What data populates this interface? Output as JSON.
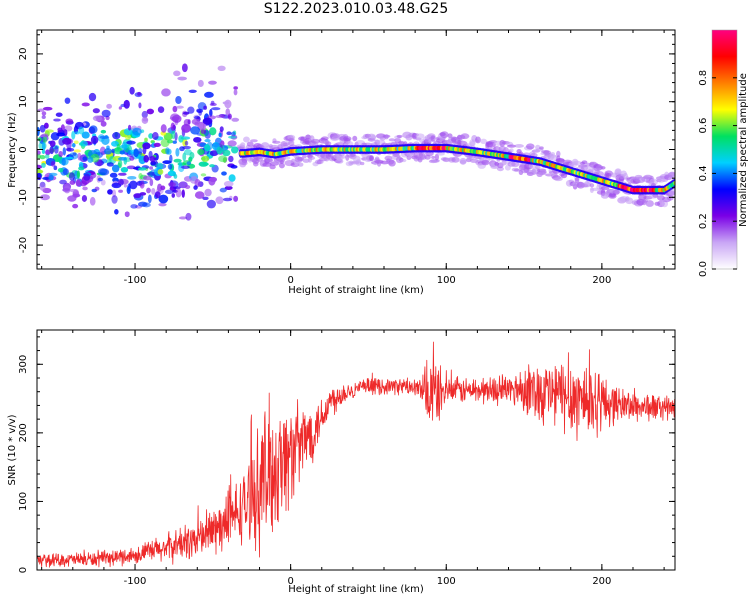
{
  "title": "S122.2023.010.03.48.G25",
  "chart_data": [
    {
      "type": "heatmap",
      "xlabel": "Height of straight line (km)",
      "ylabel": "Frequency (Hz)",
      "xlim": [
        -163,
        247
      ],
      "ylim": [
        -25,
        25
      ],
      "xticks": [
        -100,
        0,
        100,
        200
      ],
      "yticks": [
        -20,
        -10,
        0,
        10,
        20
      ],
      "colorbar": {
        "label": "Normalized spectral amplitude",
        "range": [
          0,
          1
        ],
        "ticks": [
          "0.0",
          "0.2",
          "0.4",
          "0.6",
          "0.8"
        ],
        "colors": [
          "#ffffff",
          "#c9a6f5",
          "#7a00e6",
          "#0000ff",
          "#00d0ff",
          "#00e060",
          "#ffff00",
          "#ff7f00",
          "#ff0000",
          "#ff0080"
        ]
      },
      "ridge": {
        "x": [
          -30,
          -20,
          -10,
          0,
          20,
          40,
          60,
          80,
          100,
          120,
          140,
          160,
          180,
          200,
          220,
          240,
          247
        ],
        "y": [
          -0.8,
          -0.5,
          -1.0,
          -0.4,
          0.0,
          0.0,
          0.0,
          0.3,
          0.3,
          -0.5,
          -1.5,
          -2.5,
          -4.5,
          -6.5,
          -8.5,
          -8.5,
          -7.0
        ]
      },
      "scatter_region": {
        "x_range": [
          -163,
          -35
        ],
        "y_range": [
          -25,
          25
        ]
      }
    },
    {
      "type": "line",
      "xlabel": "Height of straight line (km)",
      "ylabel": "SNR (10 * v/v)",
      "xlim": [
        -163,
        247
      ],
      "ylim": [
        0,
        350
      ],
      "xticks": [
        -100,
        0,
        100,
        200
      ],
      "yticks": [
        0,
        100,
        200,
        300
      ],
      "color": "#ee2a2a",
      "trend": {
        "x": [
          -163,
          -120,
          -100,
          -80,
          -60,
          -40,
          -25,
          -15,
          -5,
          5,
          15,
          25,
          35,
          50,
          75,
          90,
          100,
          130,
          150,
          175,
          200,
          225,
          247
        ],
        "y": [
          14,
          16,
          22,
          32,
          45,
          70,
          105,
          140,
          160,
          180,
          205,
          245,
          260,
          268,
          268,
          255,
          262,
          262,
          265,
          255,
          245,
          238,
          236
        ]
      },
      "spread": {
        "x": [
          -163,
          -100,
          -60,
          -30,
          -15,
          0,
          20,
          40,
          80,
          92,
          100,
          140,
          160,
          190,
          210,
          247
        ],
        "amp": [
          10,
          15,
          35,
          60,
          130,
          90,
          35,
          14,
          14,
          70,
          22,
          25,
          55,
          75,
          30,
          20
        ]
      }
    }
  ]
}
